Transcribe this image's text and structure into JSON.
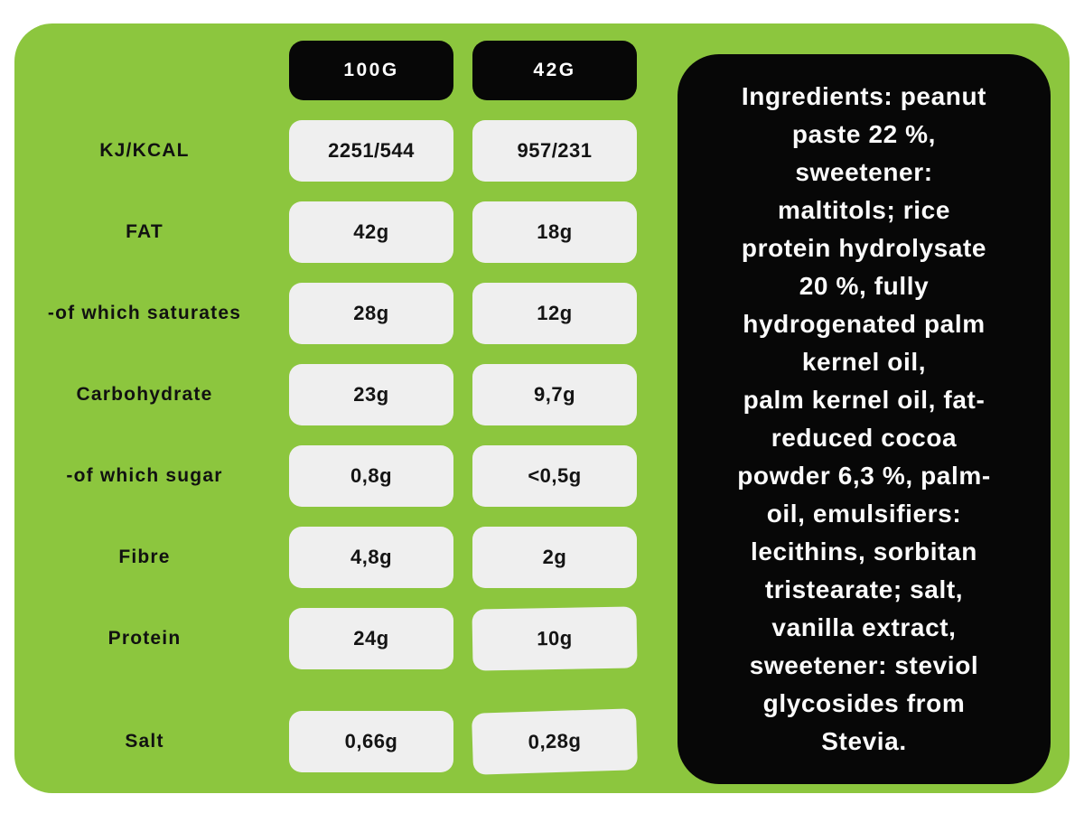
{
  "colors": {
    "page_background": "#ffffff",
    "panel_green": "#8CC63E",
    "header_black": "#070707",
    "value_box_gray": "#EFEFEF",
    "value_text": "#141414",
    "light_text": "#fbfbfb"
  },
  "table": {
    "columns": [
      "100G",
      "42G"
    ],
    "rows": [
      {
        "label": "KJ/KCAL",
        "values": [
          "2251/544",
          "957/231"
        ]
      },
      {
        "label": "FAT",
        "values": [
          "42g",
          "18g"
        ]
      },
      {
        "label": "-of which saturates",
        "values": [
          "28g",
          "12g"
        ]
      },
      {
        "label": "Carbohydrate",
        "values": [
          "23g",
          "9,7g"
        ]
      },
      {
        "label": "-of which sugar",
        "values": [
          "0,8g",
          "<0,5g"
        ]
      },
      {
        "label": "Fibre",
        "values": [
          "4,8g",
          "2g"
        ]
      },
      {
        "label": "Protein",
        "values": [
          "24g",
          "10g"
        ]
      },
      {
        "label": "Salt",
        "values": [
          "0,66g",
          "0,28g"
        ]
      }
    ]
  },
  "ingredients": {
    "text": "Ingredients: peanut\npaste 22 %,\nsweetener:\nmaltitols; rice\nprotein hydrolysate\n20 %, fully\nhydrogenated palm\nkernel oil,\npalm kernel oil, fat-\nreduced cocoa\npowder 6,3 %, palm-\noil, emulsifiers:\nlecithins, sorbitan\ntristearate; salt,\nvanilla extract,\nsweetener: steviol\nglycosides from\nStevia."
  }
}
